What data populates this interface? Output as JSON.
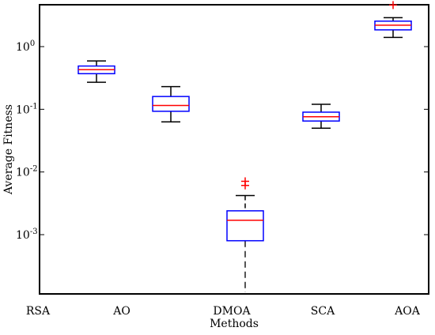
{
  "chart_data": {
    "type": "boxplot",
    "title": "",
    "xlabel": "Methods",
    "ylabel": "Average Fitness",
    "yscale": "log",
    "ylim": [
      0.0001,
      5
    ],
    "grid": false,
    "categories": [
      "RSA",
      "AO",
      "DMOA",
      "SCA",
      "AOA"
    ],
    "y_ticks": [
      {
        "value": 0.001,
        "base": "10",
        "exp": "-3"
      },
      {
        "value": 0.01,
        "base": "10",
        "exp": "-2"
      },
      {
        "value": 0.1,
        "base": "10",
        "exp": "-1"
      },
      {
        "value": 1,
        "base": "10",
        "exp": "0"
      }
    ],
    "boxes": [
      {
        "name": "RSA",
        "present": false
      },
      {
        "name": "AO",
        "present": true,
        "whisker_low": 0.27,
        "q1": 0.37,
        "median": 0.43,
        "q3": 0.49,
        "whisker_high": 0.59,
        "outliers": []
      },
      {
        "name": "DMOA",
        "present": true,
        "whisker_low": 0.00012,
        "q1": 0.0008,
        "median": 0.0017,
        "q3": 0.0024,
        "whisker_high": 0.0042,
        "outliers": [
          0.0061,
          0.0071
        ],
        "dashed_lower_whisker": true
      },
      {
        "name": "SCA",
        "present": true,
        "whisker_low": 0.05,
        "q1": 0.065,
        "median": 0.076,
        "q3": 0.09,
        "whisker_high": 0.12,
        "outliers": []
      },
      {
        "name": "AOA",
        "present": true,
        "whisker_low": 1.4,
        "q1": 1.85,
        "median": 2.2,
        "q3": 2.55,
        "whisker_high": 2.9,
        "outliers": [
          4.6
        ]
      }
    ],
    "extra_box": {
      "label_position_between": [
        "AO",
        "DMOA"
      ],
      "whisker_low": 0.063,
      "q1": 0.093,
      "median": 0.115,
      "q3": 0.16,
      "whisker_high": 0.23,
      "outliers": []
    },
    "colors": {
      "box": "#0000ff",
      "median": "#ff0000",
      "whisker": "#000000",
      "outlier": "#ff0000",
      "axis": "#000000"
    }
  }
}
